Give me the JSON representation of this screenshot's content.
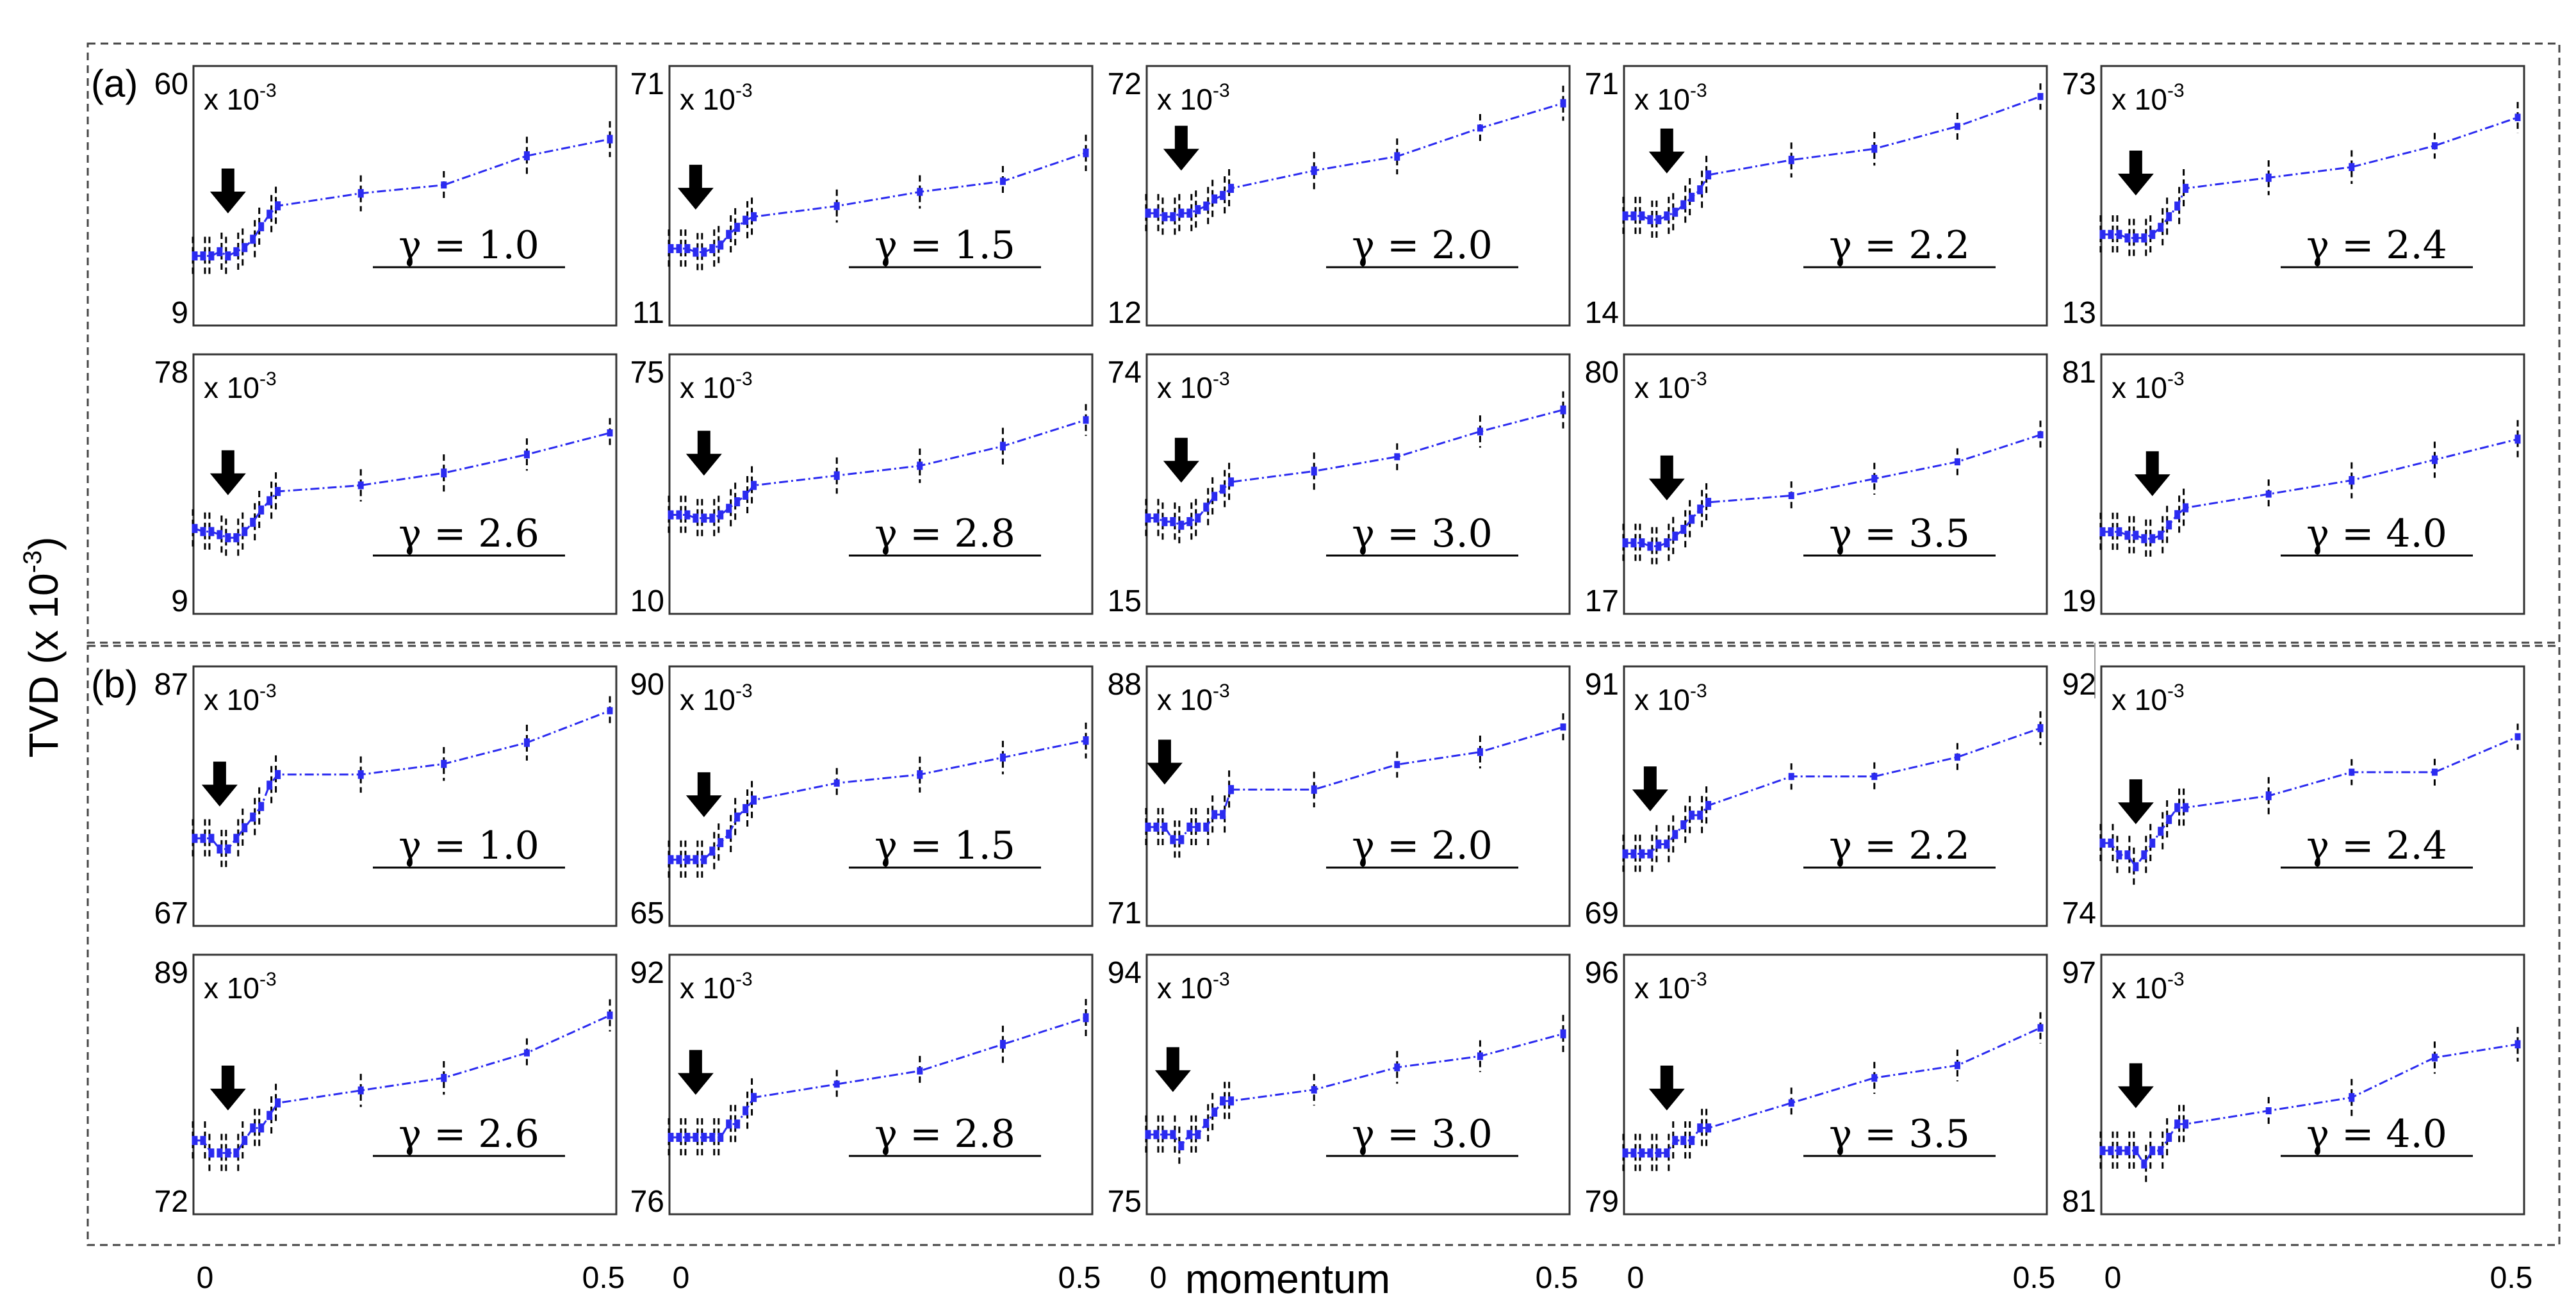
{
  "figure": {
    "ylabel": "TVD (x 10",
    "ylabel_exp": "-3",
    "ylabel_close": ")",
    "xlabel": "momentum",
    "x_tick_labels": [
      "0",
      "0.5"
    ],
    "scale_text": "x 10",
    "scale_exp": "-3",
    "gamma_symbol": "γ = ",
    "colors": {
      "line": "#2b2bf0",
      "whisker": "#000000",
      "box": "#2b2bf0",
      "arrow": "#000000",
      "frame": "#333333"
    }
  },
  "chart_data": {
    "type": "line",
    "description_x": "momentum",
    "momentum_values": [
      0,
      0.01,
      0.02,
      0.03,
      0.04,
      0.05,
      0.06,
      0.07,
      0.08,
      0.09,
      0.1,
      0.2,
      0.3,
      0.4,
      0.5
    ],
    "xlim": [
      0,
      0.5
    ],
    "groups": [
      {
        "label": "(a)",
        "panels": [
          {
            "gamma": "1.0",
            "ymin": 9,
            "ymax": 60,
            "values": [
              20,
              20,
              20,
              21,
              20,
              21,
              22,
              24,
              27,
              30,
              32,
              35,
              37,
              44,
              48
            ],
            "arrow_at": 0.04
          },
          {
            "gamma": "1.5",
            "ymin": 11,
            "ymax": 71,
            "values": [
              26,
              26,
              26,
              25,
              25,
              26,
              27,
              30,
              32,
              34,
              35,
              38,
              42,
              45,
              53
            ],
            "arrow_at": 0.03
          },
          {
            "gamma": "2.0",
            "ymin": 12,
            "ymax": 72,
            "values": [
              37,
              37,
              36,
              36,
              37,
              37,
              38,
              39,
              41,
              42,
              44,
              49,
              53,
              61,
              68
            ],
            "arrow_at": 0.04
          },
          {
            "gamma": "2.2",
            "ymin": 14,
            "ymax": 71,
            "values": [
              37,
              37,
              37,
              36,
              36,
              37,
              38,
              40,
              42,
              44,
              48,
              52,
              55,
              61,
              69
            ],
            "arrow_at": 0.05
          },
          {
            "gamma": "2.4",
            "ymin": 13,
            "ymax": 73,
            "values": [
              32,
              32,
              32,
              31,
              31,
              31,
              32,
              34,
              37,
              40,
              45,
              48,
              51,
              57,
              65
            ],
            "arrow_at": 0.04
          }
        ]
      },
      {
        "label": "",
        "panels": [
          {
            "gamma": "2.6",
            "ymin": 9,
            "ymax": 78,
            "values": [
              29,
              28,
              28,
              27,
              26,
              26,
              28,
              31,
              35,
              38,
              41,
              43,
              47,
              53,
              60
            ],
            "arrow_at": 0.04
          },
          {
            "gamma": "2.8",
            "ymin": 10,
            "ymax": 75,
            "values": [
              33,
              33,
              33,
              32,
              32,
              32,
              33,
              35,
              37,
              39,
              42,
              45,
              48,
              54,
              62
            ],
            "arrow_at": 0.04
          },
          {
            "gamma": "3.0",
            "ymin": 15,
            "ymax": 74,
            "values": [
              35,
              35,
              34,
              34,
              33,
              34,
              35,
              38,
              41,
              43,
              45,
              48,
              52,
              59,
              65
            ],
            "arrow_at": 0.04
          },
          {
            "gamma": "3.5",
            "ymin": 17,
            "ymax": 80,
            "values": [
              31,
              31,
              31,
              30,
              30,
              31,
              33,
              35,
              38,
              41,
              43,
              45,
              50,
              55,
              63
            ],
            "arrow_at": 0.05
          },
          {
            "gamma": "4.0",
            "ymin": 19,
            "ymax": 81,
            "values": [
              36,
              36,
              36,
              35,
              35,
              34,
              34,
              35,
              38,
              41,
              43,
              47,
              51,
              57,
              63
            ],
            "arrow_at": 0.06
          }
        ]
      },
      {
        "label": "(b)",
        "panels": [
          {
            "gamma": "1.0",
            "ymin": 67,
            "ymax": 87,
            "values": [
              73,
              73,
              73,
              72,
              72,
              73,
              74,
              75,
              76,
              78,
              79,
              79,
              80,
              82,
              85
            ],
            "arrow_at": 0.03
          },
          {
            "gamma": "1.5",
            "ymin": 65,
            "ymax": 90,
            "values": [
              70,
              70,
              70,
              70,
              70,
              71,
              72,
              73,
              75,
              76,
              77,
              79,
              80,
              82,
              84
            ],
            "arrow_at": 0.04
          },
          {
            "gamma": "2.0",
            "ymin": 71,
            "ymax": 88,
            "values": [
              77,
              77,
              77,
              76,
              76,
              77,
              77,
              77,
              78,
              78,
              80,
              80,
              82,
              83,
              85
            ],
            "arrow_at": 0.02
          },
          {
            "gamma": "2.2",
            "ymin": 69,
            "ymax": 91,
            "values": [
              74,
              74,
              74,
              74,
              75,
              75,
              76,
              77,
              78,
              78,
              79,
              82,
              82,
              84,
              87
            ],
            "arrow_at": 0.03
          },
          {
            "gamma": "2.4",
            "ymin": 74,
            "ymax": 92,
            "values": [
              79,
              79,
              78,
              78,
              77,
              78,
              79,
              80,
              81,
              82,
              82,
              83,
              85,
              85,
              88
            ],
            "arrow_at": 0.04
          }
        ]
      },
      {
        "label": "",
        "panels": [
          {
            "gamma": "2.6",
            "ymin": 72,
            "ymax": 89,
            "values": [
              76,
              76,
              75,
              75,
              75,
              75,
              76,
              77,
              77,
              78,
              79,
              80,
              81,
              83,
              86
            ],
            "arrow_at": 0.04
          },
          {
            "gamma": "2.8",
            "ymin": 76,
            "ymax": 92,
            "values": [
              80,
              80,
              80,
              80,
              80,
              80,
              80,
              81,
              81,
              82,
              83,
              84,
              85,
              87,
              89
            ],
            "arrow_at": 0.03
          },
          {
            "gamma": "3.0",
            "ymin": 75,
            "ymax": 94,
            "values": [
              80,
              80,
              80,
              80,
              79,
              80,
              80,
              81,
              82,
              83,
              83,
              84,
              86,
              87,
              89
            ],
            "arrow_at": 0.03
          },
          {
            "gamma": "3.5",
            "ymin": 79,
            "ymax": 96,
            "values": [
              82,
              82,
              82,
              82,
              82,
              82,
              83,
              83,
              83,
              84,
              84,
              86,
              88,
              89,
              92
            ],
            "arrow_at": 0.05
          },
          {
            "gamma": "4.0",
            "ymin": 81,
            "ymax": 97,
            "values": [
              84,
              84,
              84,
              84,
              84,
              83,
              84,
              84,
              85,
              86,
              86,
              87,
              88,
              91,
              92
            ],
            "arrow_at": 0.04
          }
        ]
      }
    ]
  }
}
